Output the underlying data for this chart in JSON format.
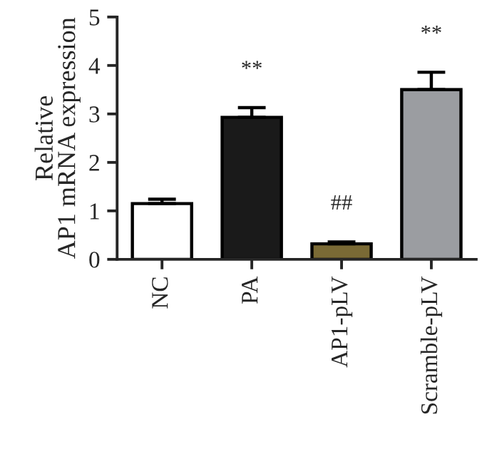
{
  "chart_data": {
    "type": "bar",
    "ylabel": "Relative\nAP1 mRNA expression",
    "categories": [
      "NC",
      "PA",
      "AP1-pLV",
      "Scramble-pLV"
    ],
    "values": [
      1.15,
      2.93,
      0.32,
      3.5
    ],
    "colors": [
      "#ffffff",
      "#1a1a1a",
      "#7a6a35",
      "#9b9da1"
    ],
    "errors": [
      [
        1.15,
        1.24
      ],
      [
        2.93,
        3.13
      ],
      [
        0.32,
        0.36
      ],
      [
        3.5,
        3.86
      ]
    ],
    "ylim": [
      0,
      5
    ],
    "yticks": [
      0,
      1,
      2,
      3,
      4,
      5
    ],
    "grid": false,
    "legend": false,
    "annotations": [
      "**",
      "##",
      "**"
    ]
  }
}
